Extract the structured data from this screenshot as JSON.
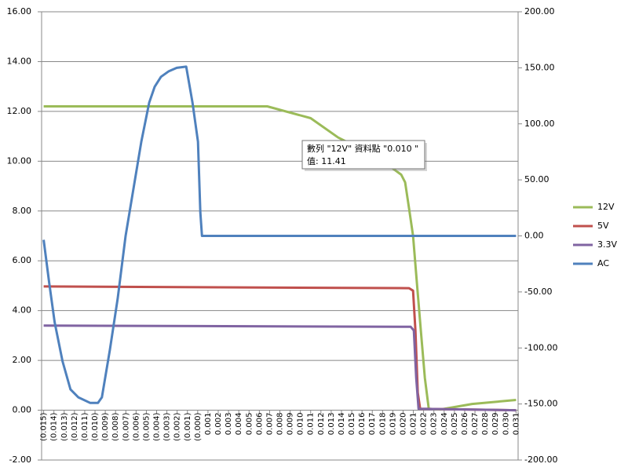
{
  "chart_data": {
    "type": "line",
    "xlim": [
      -0.0152,
      0.0312
    ],
    "xticks": [
      {
        "value": -0.015,
        "label": "(0.015)"
      },
      {
        "value": -0.014,
        "label": "(0.014)"
      },
      {
        "value": -0.013,
        "label": "(0.013)"
      },
      {
        "value": -0.012,
        "label": "(0.012)"
      },
      {
        "value": -0.011,
        "label": "(0.011)"
      },
      {
        "value": -0.01,
        "label": "(0.010)"
      },
      {
        "value": -0.009,
        "label": "(0.009)"
      },
      {
        "value": -0.008,
        "label": "(0.008)"
      },
      {
        "value": -0.007,
        "label": "(0.007)"
      },
      {
        "value": -0.006,
        "label": "(0.006)"
      },
      {
        "value": -0.005,
        "label": "(0.005)"
      },
      {
        "value": -0.004,
        "label": "(0.004)"
      },
      {
        "value": -0.003,
        "label": "(0.003)"
      },
      {
        "value": -0.002,
        "label": "(0.002)"
      },
      {
        "value": -0.001,
        "label": "(0.001)"
      },
      {
        "value": 0,
        "label": "(0.000)"
      },
      {
        "value": 0.001,
        "label": "0.001"
      },
      {
        "value": 0.002,
        "label": "0.002"
      },
      {
        "value": 0.003,
        "label": "0.003"
      },
      {
        "value": 0.004,
        "label": "0.004"
      },
      {
        "value": 0.005,
        "label": "0.005"
      },
      {
        "value": 0.006,
        "label": "0.006"
      },
      {
        "value": 0.007,
        "label": "0.007"
      },
      {
        "value": 0.008,
        "label": "0.008"
      },
      {
        "value": 0.009,
        "label": "0.009"
      },
      {
        "value": 0.01,
        "label": "0.010"
      },
      {
        "value": 0.011,
        "label": "0.011"
      },
      {
        "value": 0.012,
        "label": "0.012"
      },
      {
        "value": 0.013,
        "label": "0.013"
      },
      {
        "value": 0.014,
        "label": "0.014"
      },
      {
        "value": 0.015,
        "label": "0.015"
      },
      {
        "value": 0.016,
        "label": "0.016"
      },
      {
        "value": 0.017,
        "label": "0.017"
      },
      {
        "value": 0.018,
        "label": "0.018"
      },
      {
        "value": 0.019,
        "label": "0.019"
      },
      {
        "value": 0.02,
        "label": "0.020"
      },
      {
        "value": 0.021,
        "label": "0.021"
      },
      {
        "value": 0.022,
        "label": "0.022"
      },
      {
        "value": 0.023,
        "label": "0.023"
      },
      {
        "value": 0.024,
        "label": "0.024"
      },
      {
        "value": 0.025,
        "label": "0.025"
      },
      {
        "value": 0.026,
        "label": "0.026"
      },
      {
        "value": 0.027,
        "label": "0.027"
      },
      {
        "value": 0.028,
        "label": "0.028"
      },
      {
        "value": 0.029,
        "label": "0.029"
      },
      {
        "value": 0.03,
        "label": "0.030"
      },
      {
        "value": 0.031,
        "label": "0.031"
      }
    ],
    "ylim": [
      -2,
      16
    ],
    "yticks": [
      {
        "value": -2,
        "label": "-2.00"
      },
      {
        "value": 0,
        "label": "0.00"
      },
      {
        "value": 2,
        "label": "2.00"
      },
      {
        "value": 4,
        "label": "4.00"
      },
      {
        "value": 6,
        "label": "6.00"
      },
      {
        "value": 8,
        "label": "8.00"
      },
      {
        "value": 10,
        "label": "10.00"
      },
      {
        "value": 12,
        "label": "12.00"
      },
      {
        "value": 14,
        "label": "14.00"
      },
      {
        "value": 16,
        "label": "16.00"
      }
    ],
    "y2lim": [
      -200,
      200
    ],
    "y2ticks": [
      {
        "value": -200,
        "label": "-200.00"
      },
      {
        "value": -150,
        "label": "-150.00"
      },
      {
        "value": -100,
        "label": "-100.00"
      },
      {
        "value": -50,
        "label": "-50.00"
      },
      {
        "value": 0,
        "label": "0.00"
      },
      {
        "value": 50,
        "label": "50.00"
      },
      {
        "value": 100,
        "label": "100.00"
      },
      {
        "value": 150,
        "label": "150.00"
      },
      {
        "value": 200,
        "label": "200.00"
      }
    ],
    "grid": true,
    "legend": "right",
    "series": [
      {
        "name": "12V",
        "color": "#9bbb59",
        "axis": "y",
        "x": [
          -0.015,
          0.00678,
          0.011,
          0.01368,
          0.01752,
          0.01982,
          0.0202,
          0.02058,
          0.02097,
          0.02135,
          0.02173,
          0.02212,
          0.0225,
          0.02365,
          0.02672,
          0.031
        ],
        "values": [
          12.2,
          12.2,
          11.73,
          10.95,
          10.16,
          9.46,
          9.15,
          8.1,
          7.0,
          5.1,
          3.2,
          1.3,
          0.06,
          0.03,
          0.25,
          0.41
        ]
      },
      {
        "name": "5V",
        "color": "#c0504d",
        "axis": "y",
        "x": [
          -0.015,
          0.02058,
          0.02097,
          0.0212,
          0.02143,
          0.02166,
          0.031
        ],
        "values": [
          4.97,
          4.9,
          4.8,
          3.2,
          0.7,
          0.06,
          0.0
        ]
      },
      {
        "name": "3.3V",
        "color": "#8064a2",
        "axis": "y",
        "x": [
          -0.015,
          0.02074,
          0.02105,
          0.02128,
          0.02151,
          0.031
        ],
        "values": [
          3.4,
          3.35,
          3.2,
          1.3,
          0.06,
          0.0
        ]
      },
      {
        "name": "AC",
        "color": "#4f81bd",
        "axis": "y2",
        "x": [
          -0.015,
          -0.01446,
          -0.01393,
          -0.01316,
          -0.01239,
          -0.01163,
          -0.01048,
          -0.00971,
          -0.00933,
          -0.00856,
          -0.00779,
          -0.00702,
          -0.00626,
          -0.00549,
          -0.00472,
          -0.00419,
          -0.00357,
          -0.00281,
          -0.00204,
          -0.00112,
          -0.00051,
          3e-05,
          0.00026,
          0.00042,
          0.031
        ],
        "values": [
          -3.5,
          -42,
          -77,
          -112,
          -137,
          -144,
          -149,
          -149,
          -144,
          -102,
          -56,
          0,
          42,
          84,
          119,
          133,
          142,
          147,
          150,
          151,
          119,
          84,
          21,
          0,
          0
        ]
      }
    ],
    "tooltip": [
      "數列 \"12V\" 資料點 \"0.010 \"",
      "值: 11.41"
    ]
  }
}
